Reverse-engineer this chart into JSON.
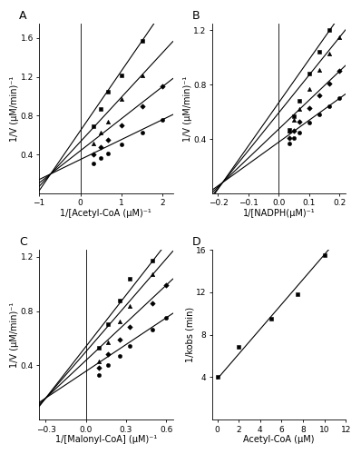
{
  "panel_A": {
    "title": "A",
    "xlabel": "1/[Acetyl-CoA (μM)⁻¹",
    "ylabel": "1/V (μM/min)⁻¹",
    "xlim": [
      -1.0,
      2.25
    ],
    "ylim": [
      0,
      1.75
    ],
    "xticks": [
      -1,
      0,
      1,
      2
    ],
    "yticks": [
      0.4,
      0.8,
      1.2,
      1.6
    ],
    "convergence_x": -0.72,
    "convergence_y": 0.2,
    "series": [
      {
        "marker": "o",
        "x_data": [
          0.33,
          0.5,
          0.67,
          1.0,
          1.5,
          2.0
        ],
        "y_data": [
          0.31,
          0.36,
          0.41,
          0.5,
          0.63,
          0.76
        ]
      },
      {
        "marker": "s",
        "x_data": [
          0.33,
          0.5,
          0.67,
          1.0,
          1.5,
          2.0
        ],
        "y_data": [
          0.4,
          0.48,
          0.55,
          0.7,
          0.9,
          1.1
        ]
      },
      {
        "marker": "^",
        "x_data": [
          0.33,
          0.5,
          0.67,
          1.0,
          1.5
        ],
        "y_data": [
          0.51,
          0.63,
          0.74,
          0.97,
          1.22
        ]
      },
      {
        "marker": "s",
        "x_data": [
          0.33,
          0.5,
          0.67,
          1.0,
          1.5
        ],
        "y_data": [
          0.69,
          0.87,
          1.05,
          1.22,
          1.57
        ]
      }
    ]
  },
  "panel_B": {
    "title": "B",
    "xlabel": "1/[NADPH(μM)⁻¹",
    "ylabel": "1/V (μM/min)⁻¹",
    "xlim": [
      -0.22,
      0.22
    ],
    "ylim": [
      0,
      1.25
    ],
    "xticks": [
      -0.2,
      -0.1,
      0,
      0.1,
      0.2
    ],
    "yticks": [
      0.4,
      0.8,
      1.2
    ],
    "convergence_x": -0.185,
    "convergence_y": 0.08,
    "series": [
      {
        "marker": "o",
        "x_data": [
          0.033,
          0.05,
          0.067,
          0.1,
          0.133,
          0.167,
          0.2
        ],
        "y_data": [
          0.37,
          0.41,
          0.45,
          0.52,
          0.58,
          0.64,
          0.7
        ]
      },
      {
        "marker": "s",
        "x_data": [
          0.033,
          0.05,
          0.067,
          0.1,
          0.133,
          0.167,
          0.2
        ],
        "y_data": [
          0.41,
          0.46,
          0.53,
          0.63,
          0.72,
          0.81,
          0.9
        ]
      },
      {
        "marker": "^",
        "x_data": [
          0.033,
          0.05,
          0.067,
          0.1,
          0.133,
          0.167,
          0.2
        ],
        "y_data": [
          0.46,
          0.54,
          0.62,
          0.77,
          0.91,
          1.03,
          1.15
        ]
      },
      {
        "marker": "s",
        "x_data": [
          0.033,
          0.05,
          0.067,
          0.1,
          0.133,
          0.167
        ],
        "y_data": [
          0.47,
          0.57,
          0.68,
          0.88,
          1.04,
          1.2
        ]
      }
    ]
  },
  "panel_C": {
    "title": "C",
    "xlabel": "1/[Malonyl-CoA] (μM)⁻¹",
    "ylabel": "1/V (μM/min)⁻¹",
    "xlim": [
      -0.35,
      0.65
    ],
    "ylim": [
      0,
      1.25
    ],
    "xticks": [
      -0.3,
      0,
      0.3,
      0.6
    ],
    "yticks": [
      0.4,
      0.8,
      1.2
    ],
    "convergence_x": -0.3,
    "convergence_y": 0.16,
    "series": [
      {
        "marker": "o",
        "x_data": [
          0.1,
          0.167,
          0.25,
          0.33,
          0.5,
          0.6
        ],
        "y_data": [
          0.33,
          0.4,
          0.47,
          0.54,
          0.66,
          0.75
        ]
      },
      {
        "marker": "s",
        "x_data": [
          0.1,
          0.167,
          0.25,
          0.33,
          0.5,
          0.6
        ],
        "y_data": [
          0.38,
          0.48,
          0.59,
          0.68,
          0.86,
          0.99
        ]
      },
      {
        "marker": "^",
        "x_data": [
          0.1,
          0.167,
          0.25,
          0.33,
          0.5
        ],
        "y_data": [
          0.43,
          0.57,
          0.72,
          0.84,
          1.07
        ]
      },
      {
        "marker": "s",
        "x_data": [
          0.1,
          0.167,
          0.25,
          0.33,
          0.5
        ],
        "y_data": [
          0.53,
          0.7,
          0.88,
          1.04,
          1.17
        ]
      }
    ]
  },
  "panel_D": {
    "title": "D",
    "xlabel": "Acetyl-CoA (μM)",
    "ylabel": "1/kobs (min)",
    "xlim": [
      -0.5,
      12
    ],
    "ylim": [
      0,
      16
    ],
    "xticks": [
      0,
      2,
      4,
      6,
      8,
      10,
      12
    ],
    "yticks": [
      4,
      8,
      12,
      16
    ],
    "x_data": [
      0.0,
      2.0,
      5.0,
      7.5,
      10.0
    ],
    "y_data": [
      4.0,
      6.9,
      9.5,
      11.8,
      15.5
    ],
    "slope": 1.17,
    "intercept": 3.85,
    "marker": "s"
  },
  "line_color": "#000000",
  "marker_color": "#000000",
  "marker_size": 3.5,
  "line_width": 0.8,
  "label_font_size": 7,
  "tick_font_size": 6.5,
  "panel_label_fontsize": 9
}
